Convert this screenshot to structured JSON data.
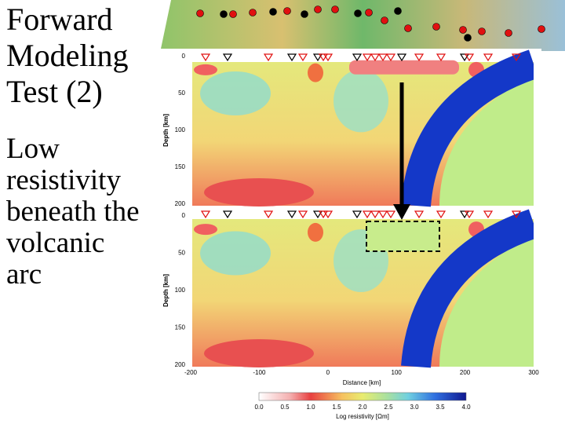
{
  "slide": {
    "title": "Forward Modeling Test (2)",
    "body": "Low resistivity beneath the volcanic arc"
  },
  "figure": {
    "depth_axis": {
      "label": "Depth [km]",
      "ticks": [
        "0",
        "50",
        "100",
        "150",
        "200"
      ]
    },
    "distance_axis": {
      "label": "Distance [km]",
      "ticks": [
        "-200",
        "-100",
        "0",
        "100",
        "200",
        "300"
      ]
    },
    "colorbar": {
      "label": "Log resistivity [Ωm]",
      "ticks": [
        "0.0",
        "0.5",
        "1.0",
        "1.5",
        "2.0",
        "2.5",
        "3.0",
        "3.5",
        "4.0"
      ]
    }
  }
}
